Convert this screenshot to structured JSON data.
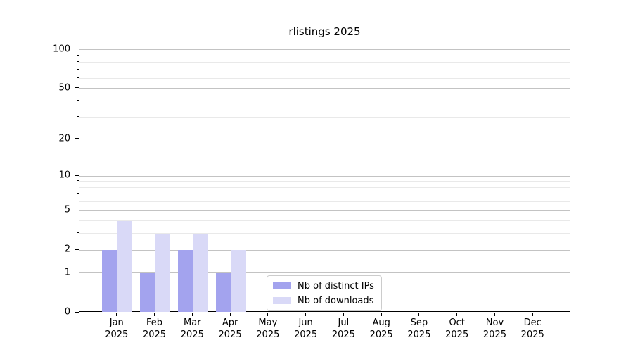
{
  "chart_data": {
    "type": "bar",
    "title": "rlistings 2025",
    "xlabel": "",
    "ylabel": "",
    "year": "2025",
    "categories_months": [
      "Jan",
      "Feb",
      "Mar",
      "Apr",
      "May",
      "Jun",
      "Jul",
      "Aug",
      "Sep",
      "Oct",
      "Nov",
      "Dec"
    ],
    "categories": [
      "Jan 2025",
      "Feb 2025",
      "Mar 2025",
      "Apr 2025",
      "May 2025",
      "Jun 2025",
      "Jul 2025",
      "Aug 2025",
      "Sep 2025",
      "Oct 2025",
      "Nov 2025",
      "Dec 2025"
    ],
    "series": [
      {
        "name": "Nb of distinct IPs",
        "color": "#a3a3ee",
        "values": [
          2,
          1,
          2,
          1,
          0,
          0,
          0,
          0,
          0,
          0,
          0,
          0
        ]
      },
      {
        "name": "Nb of downloads",
        "color": "#d9d9f7",
        "values": [
          4,
          3,
          3,
          2,
          0,
          0,
          0,
          0,
          0,
          0,
          0,
          0
        ]
      }
    ],
    "y_axis": {
      "scale": "log10(1+x)",
      "major_ticks": [
        0,
        1,
        2,
        5,
        10,
        20,
        50,
        100
      ],
      "minor_gridlines": [
        3,
        4,
        6,
        7,
        8,
        9,
        30,
        40,
        60,
        70,
        80,
        90
      ],
      "range_max": 110
    },
    "legend": {
      "position": "lower-center",
      "entries": [
        "Nb of distinct IPs",
        "Nb of downloads"
      ]
    },
    "grid": "horizontal",
    "colors": {
      "major_gridline": "#c3c3c3",
      "minor_gridline": "#e9e9e9",
      "axis": "#000000",
      "background": "#ffffff"
    }
  }
}
